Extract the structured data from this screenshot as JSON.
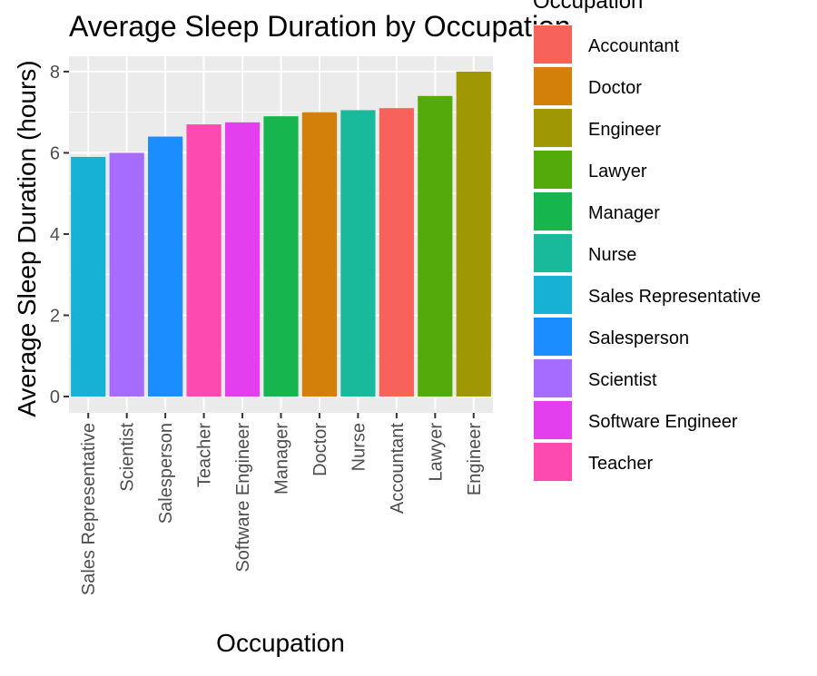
{
  "chart_data": {
    "type": "bar",
    "title": "Average Sleep Duration by Occupation",
    "xlabel": "Occupation",
    "ylabel": "Average Sleep Duration (hours)",
    "categories": [
      "Sales Representative",
      "Scientist",
      "Salesperson",
      "Teacher",
      "Software Engineer",
      "Manager",
      "Doctor",
      "Nurse",
      "Accountant",
      "Lawyer",
      "Engineer"
    ],
    "values": [
      5.9,
      6.0,
      6.4,
      6.7,
      6.75,
      6.9,
      7.0,
      7.05,
      7.1,
      7.4,
      8.0
    ],
    "bar_colors": [
      "#18B1D6",
      "#A66BFF",
      "#1B8DFF",
      "#FD4AB0",
      "#E43FEE",
      "#17B54D",
      "#D3800A",
      "#19BA9C",
      "#F7625B",
      "#53AA0A",
      "#9F9704"
    ],
    "ylim": [
      0,
      8.4
    ],
    "yticks": [
      0,
      2,
      4,
      6,
      8
    ],
    "grid": true,
    "panel_background": "#EBEBEB",
    "legend": {
      "title": "Occupation",
      "placement": "right",
      "entries": [
        {
          "label": "Accountant",
          "color": "#F7625B"
        },
        {
          "label": "Doctor",
          "color": "#D3800A"
        },
        {
          "label": "Engineer",
          "color": "#9F9704"
        },
        {
          "label": "Lawyer",
          "color": "#53AA0A"
        },
        {
          "label": "Manager",
          "color": "#17B54D"
        },
        {
          "label": "Nurse",
          "color": "#19BA9C"
        },
        {
          "label": "Sales Representative",
          "color": "#18B1D6"
        },
        {
          "label": "Salesperson",
          "color": "#1B8DFF"
        },
        {
          "label": "Scientist",
          "color": "#A66BFF"
        },
        {
          "label": "Software Engineer",
          "color": "#E43FEE"
        },
        {
          "label": "Teacher",
          "color": "#FD4AB0"
        }
      ]
    }
  }
}
